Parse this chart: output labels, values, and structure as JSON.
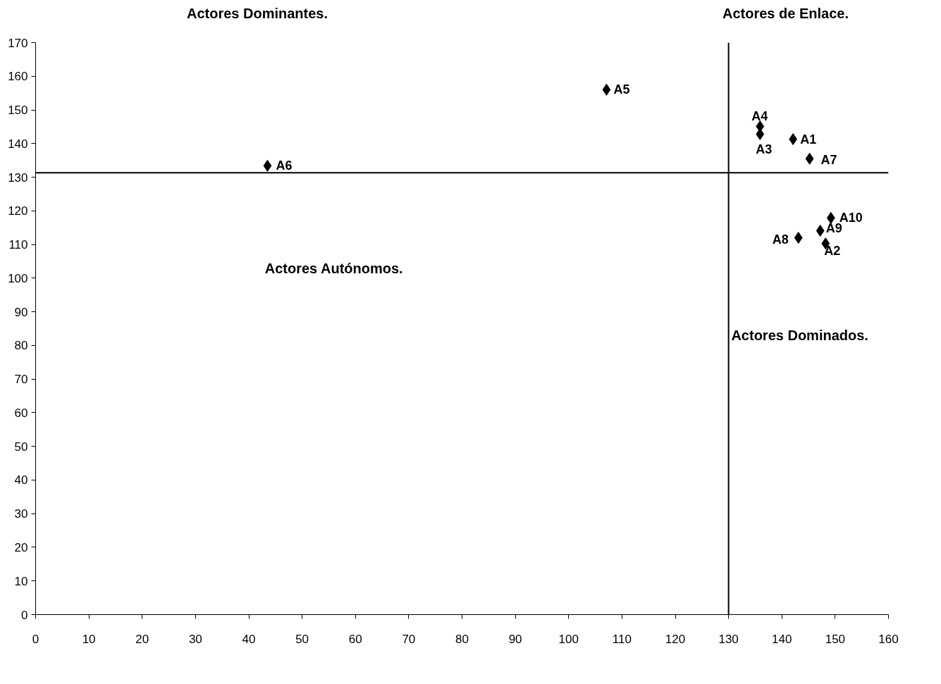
{
  "chart_data": {
    "type": "scatter",
    "x": [
      142.1,
      148.2,
      135.9,
      135.9,
      107.1,
      43.5,
      145.2,
      143.1,
      147.2,
      149.2
    ],
    "values": [
      141.3,
      110.3,
      142.8,
      145.1,
      156.0,
      133.4,
      135.5,
      112.0,
      114.1,
      117.9
    ],
    "color": "#000000",
    "marker": "diamond",
    "grid": false,
    "xlim": [
      0,
      160
    ],
    "ylim": [
      0,
      170
    ],
    "xticks": [
      0,
      10,
      20,
      30,
      40,
      50,
      60,
      70,
      80,
      90,
      100,
      110,
      120,
      130,
      140,
      150,
      160
    ],
    "yticks": [
      0,
      10,
      20,
      30,
      40,
      50,
      60,
      70,
      80,
      90,
      100,
      110,
      120,
      130,
      140,
      150,
      160,
      170
    ],
    "ref_lines": [
      {
        "axis": "x",
        "value": 130,
        "color": "#000000"
      },
      {
        "axis": "y",
        "value": 131.3,
        "color": "#000000"
      }
    ],
    "annotations": [
      {
        "text": "A1",
        "x": 142.1,
        "y": 141.3
      },
      {
        "text": "A2",
        "x": 148.2,
        "y": 110.3
      },
      {
        "text": "A3",
        "x": 135.9,
        "y": 142.8
      },
      {
        "text": "A4",
        "x": 135.9,
        "y": 145.1
      },
      {
        "text": "A5",
        "x": 107.1,
        "y": 156.0
      },
      {
        "text": "A6",
        "x": 43.5,
        "y": 133.4
      },
      {
        "text": "A7",
        "x": 145.2,
        "y": 135.5
      },
      {
        "text": "A8",
        "x": 143.1,
        "y": 112.0
      },
      {
        "text": "A9",
        "x": 147.2,
        "y": 114.1
      },
      {
        "text": "A10",
        "x": 149.2,
        "y": 117.9
      },
      "Actores Dominantes.",
      "Actores de Enlace.",
      "Actores Autónomos.",
      "Actores Dominados."
    ]
  }
}
